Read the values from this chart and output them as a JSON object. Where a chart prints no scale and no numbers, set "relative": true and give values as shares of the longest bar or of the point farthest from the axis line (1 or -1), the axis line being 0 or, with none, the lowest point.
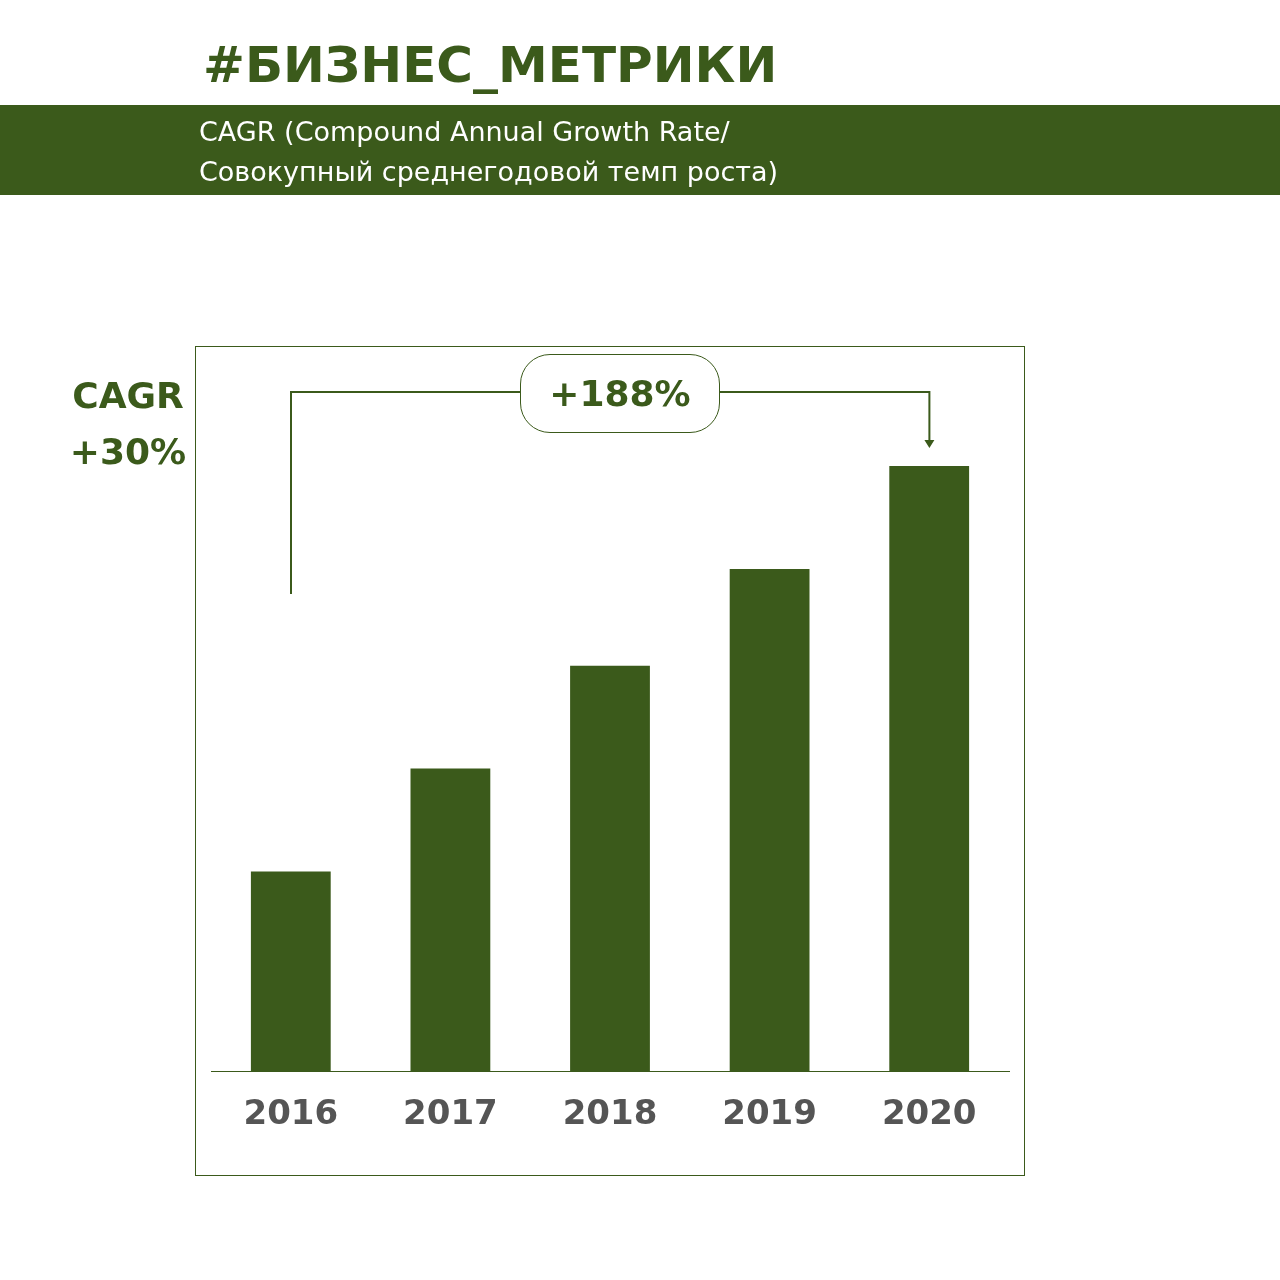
{
  "chart_data": {
    "type": "bar",
    "title": "#БИЗНЕС_МЕТРИКИ",
    "subtitle": "CAGR (Compound Annual Growth Rate/Совокупный среднегодовой темп роста)",
    "categories": [
      "2016",
      "2017",
      "2018",
      "2019",
      "2020"
    ],
    "values": [
      0.33,
      0.5,
      0.67,
      0.83,
      1
    ],
    "color": "#3b5a1b",
    "relative": true,
    "grid": false,
    "legend": false,
    "annotations": [
      "CAGR +30%",
      "+188%"
    ]
  }
}
